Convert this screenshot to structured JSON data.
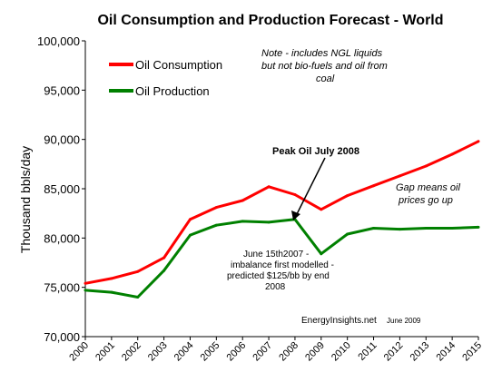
{
  "chart_data": {
    "type": "line",
    "title": "Oil Consumption and Production Forecast - World",
    "ylabel": "Thousand bbls/day",
    "xlabel": "",
    "ylim": [
      70000,
      100000
    ],
    "yticks": [
      "70,000",
      "75,000",
      "80,000",
      "85,000",
      "90,000",
      "95,000",
      "100,000"
    ],
    "ytick_values": [
      70000,
      75000,
      80000,
      85000,
      90000,
      95000,
      100000
    ],
    "categories": [
      "2000",
      "2001",
      "2002",
      "2003",
      "2004",
      "2005",
      "2006",
      "2007",
      "2008",
      "2009",
      "2010",
      "2011",
      "2012",
      "2013",
      "2014",
      "2015"
    ],
    "series": [
      {
        "name": "Oil Consumption",
        "color": "#ff0000",
        "values": [
          75400,
          75900,
          76600,
          78000,
          81900,
          83100,
          83800,
          85200,
          84400,
          82900,
          84300,
          85300,
          86300,
          87300,
          88500,
          89800
        ]
      },
      {
        "name": "Oil Production",
        "color": "#008000",
        "values": [
          74700,
          74500,
          74000,
          76700,
          80300,
          81300,
          81700,
          81600,
          81900,
          78400,
          80400,
          81000,
          80900,
          81000,
          81000,
          81100
        ]
      }
    ],
    "legend_position": "top-left",
    "grid": false,
    "annotations": {
      "note": [
        "Note - includes NGL liquids",
        "but not bio-fuels and oil from",
        "coal"
      ],
      "peak_oil": "Peak Oil July 2008",
      "june_note": [
        "June 15th2007 -",
        "imbalance first modelled -",
        "predicted $125/bb by end",
        "2008"
      ],
      "gap": [
        "Gap means oil",
        "prices go up"
      ],
      "source": "EnergyInsights.net",
      "source_date": "June 2009"
    }
  }
}
